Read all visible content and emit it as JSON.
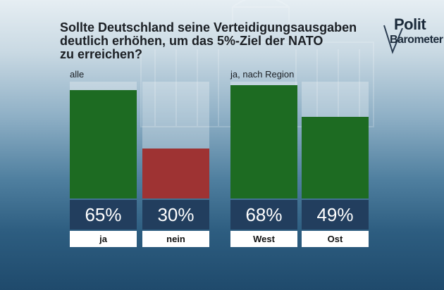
{
  "title": "Sollte Deutschland seine Verteidigungsausgaben\ndeutlich erhöhen, um das 5%-Ziel der NATO\nzu erreichen?",
  "logo": {
    "line1": "Polit",
    "line2": "Barometer"
  },
  "colors": {
    "ja": "#1d6b22",
    "nein": "#9e3333",
    "value_box": "#223e5e"
  },
  "chart_data": [
    {
      "type": "bar",
      "title": "alle",
      "categories": [
        "ja",
        "nein"
      ],
      "values": [
        65,
        30
      ],
      "value_labels": [
        "65%",
        "30%"
      ],
      "colors": [
        "#1d6b22",
        "#9e3333"
      ],
      "ylim": [
        0,
        70
      ]
    },
    {
      "type": "bar",
      "title": "ja, nach Region",
      "categories": [
        "West",
        "Ost"
      ],
      "values": [
        68,
        49
      ],
      "value_labels": [
        "68%",
        "49%"
      ],
      "colors": [
        "#1d6b22",
        "#1d6b22"
      ],
      "ylim": [
        0,
        70
      ]
    }
  ]
}
